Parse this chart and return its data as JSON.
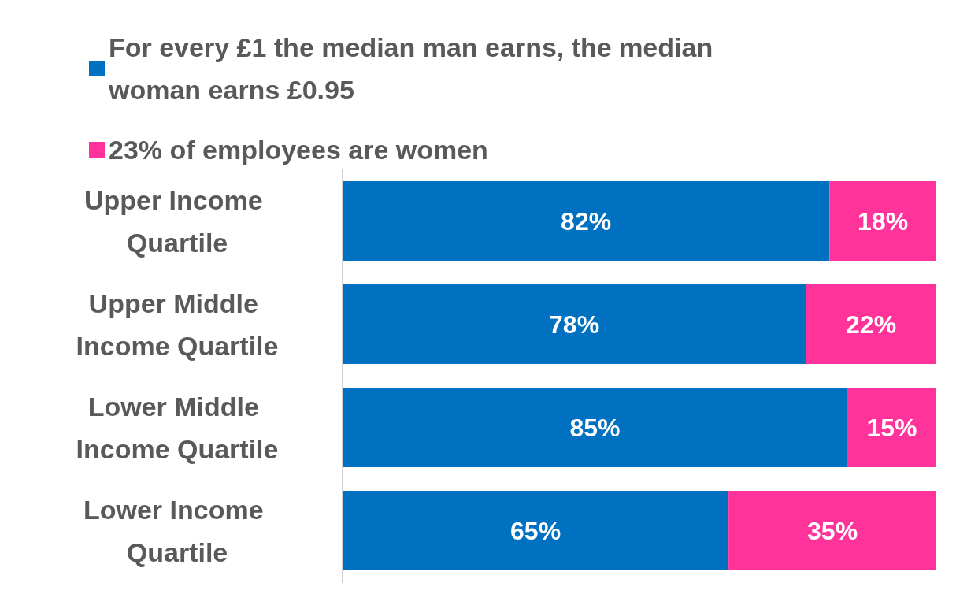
{
  "chart_data": {
    "type": "bar",
    "orientation": "horizontal",
    "stacked": true,
    "categories": [
      "Upper Income Quartile",
      "Upper Middle Income Quartile",
      "Lower Middle Income Quartile",
      "Lower Income Quartile"
    ],
    "series": [
      {
        "name": "For every £1 the median man earns, the median woman earns £0.95",
        "color": "#0070c0",
        "values": [
          82,
          78,
          85,
          65
        ],
        "value_labels": [
          "82%",
          "78%",
          "85%",
          "65%"
        ]
      },
      {
        "name": "23% of employees are women",
        "color": "#ff3399",
        "values": [
          18,
          22,
          15,
          35
        ],
        "value_labels": [
          "18%",
          "22%",
          "15%",
          "35%"
        ]
      }
    ],
    "legend": "top left",
    "tick_labels": "y"
  }
}
